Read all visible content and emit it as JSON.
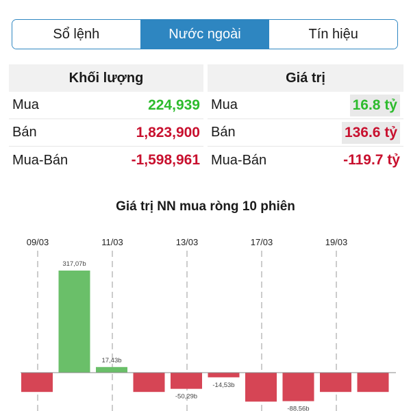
{
  "tabs": [
    {
      "label": "Sổ lệnh",
      "active": false
    },
    {
      "label": "Nước ngoài",
      "active": true
    },
    {
      "label": "Tín hiệu",
      "active": false
    }
  ],
  "volume": {
    "header": "Khối lượng",
    "rows": [
      {
        "label": "Mua",
        "value": "224,939",
        "tone": "green"
      },
      {
        "label": "Bán",
        "value": "1,823,900",
        "tone": "red"
      },
      {
        "label": "Mua-Bán",
        "value": "-1,598,961",
        "tone": "red"
      }
    ]
  },
  "value": {
    "header": "Giá trị",
    "rows": [
      {
        "label": "Mua",
        "value": "16.8 tỷ",
        "tone": "green"
      },
      {
        "label": "Bán",
        "value": "136.6 tỷ",
        "tone": "red"
      },
      {
        "label": "Mua-Bán",
        "value": "-119.7 tỷ",
        "tone": "red"
      }
    ]
  },
  "colors": {
    "accent": "#2e86c1",
    "positive": "#6abf69",
    "negative": "#d64555"
  },
  "chart_data": {
    "type": "bar",
    "title": "Giá trị NN mua ròng 10 phiên",
    "date_labels": [
      "09/03",
      "11/03",
      "13/03",
      "17/03",
      "19/03"
    ],
    "series": [
      {
        "values": [
          -60,
          317.07,
          17.43,
          -60,
          -50.29,
          -14.53,
          -90,
          -88.56,
          -60,
          -60
        ]
      }
    ],
    "data_labels": [
      "",
      "317,07b",
      "17,43b",
      "",
      "-50,29b",
      "-14,53b",
      "",
      "-88,56b",
      "",
      ""
    ],
    "units": "b"
  }
}
